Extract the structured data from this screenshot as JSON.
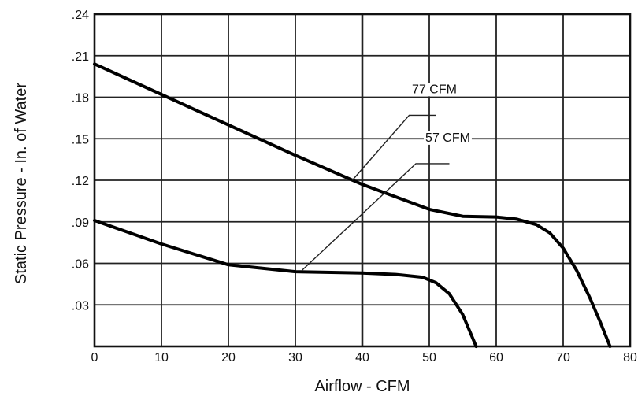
{
  "chart_data": {
    "type": "line",
    "title": "",
    "xlabel": "Airflow - CFM",
    "ylabel": "Static Pressure - In. of Water",
    "xlim": [
      0,
      80
    ],
    "ylim": [
      0,
      0.24
    ],
    "grid": true,
    "x_ticks": [
      "0",
      "10",
      "20",
      "30",
      "40",
      "50",
      "60",
      "70",
      "80"
    ],
    "y_ticks": [
      ".03",
      ".06",
      ".09",
      ".12",
      ".15",
      ".18",
      ".21",
      ".24"
    ],
    "series": [
      {
        "name": "77 CFM",
        "points": [
          [
            0,
            0.204
          ],
          [
            10,
            0.182
          ],
          [
            20,
            0.16
          ],
          [
            30,
            0.138
          ],
          [
            40,
            0.117
          ],
          [
            50,
            0.099
          ],
          [
            55,
            0.094
          ],
          [
            60,
            0.0935
          ],
          [
            63,
            0.092
          ],
          [
            66,
            0.088
          ],
          [
            68,
            0.082
          ],
          [
            70,
            0.071
          ],
          [
            72,
            0.055
          ],
          [
            74,
            0.035
          ],
          [
            75.5,
            0.018
          ],
          [
            77,
            0.0
          ]
        ]
      },
      {
        "name": "57 CFM",
        "points": [
          [
            0,
            0.091
          ],
          [
            10,
            0.074
          ],
          [
            20,
            0.059
          ],
          [
            30,
            0.054
          ],
          [
            40,
            0.053
          ],
          [
            45,
            0.052
          ],
          [
            49,
            0.05
          ],
          [
            51,
            0.046
          ],
          [
            53,
            0.038
          ],
          [
            55,
            0.023
          ],
          [
            57,
            0.0
          ]
        ]
      }
    ],
    "annotations": [
      {
        "text": "77 CFM",
        "leader": [
          [
            38.5,
            0.12
          ],
          [
            47,
            0.167
          ],
          [
            51,
            0.167
          ]
        ]
      },
      {
        "text": "57 CFM",
        "leader": [
          [
            31,
            0.055
          ],
          [
            48,
            0.132
          ],
          [
            53,
            0.132
          ]
        ]
      }
    ]
  }
}
